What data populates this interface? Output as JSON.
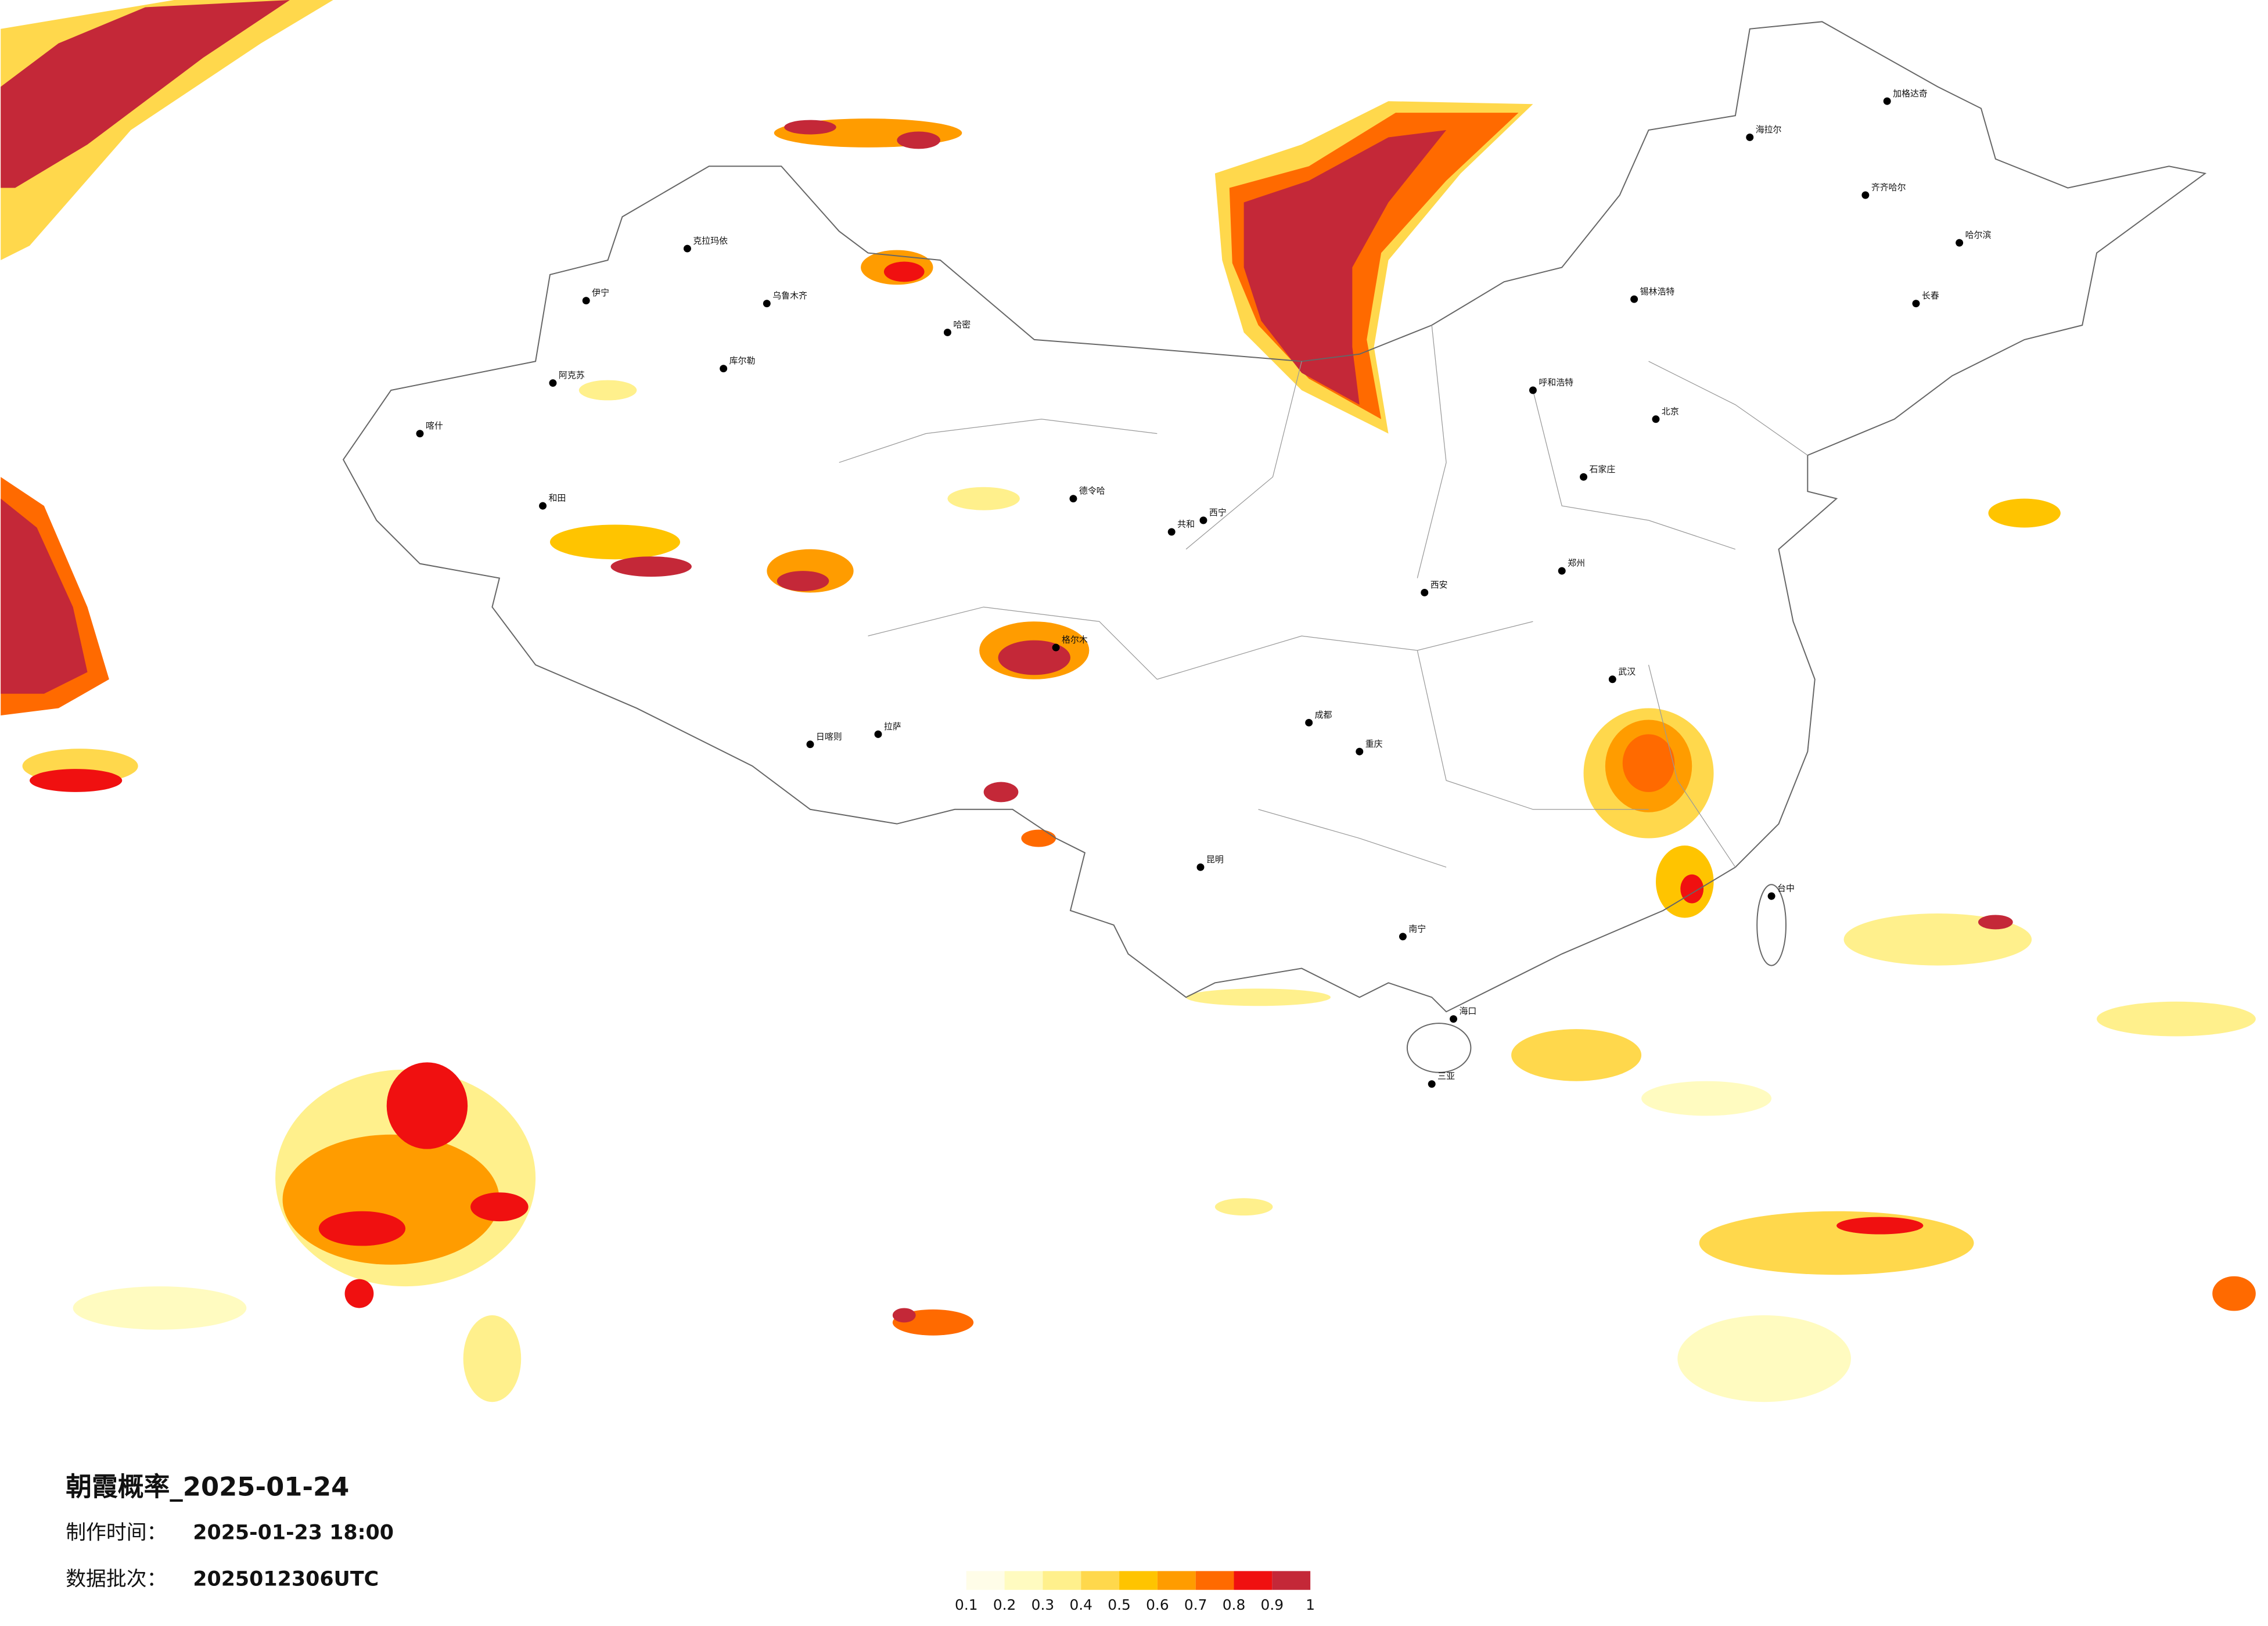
{
  "header": {
    "title": "朝霞概率_2025-01-24",
    "made_label": "制作时间：",
    "made_time": "2025-01-23 18:00",
    "batch_label": "数据批次：",
    "batch": "2025012306UTC"
  },
  "legend": {
    "ticks": [
      0.1,
      0.2,
      0.3,
      0.4,
      0.5,
      0.6,
      0.7,
      0.8,
      0.9,
      1
    ],
    "colors": [
      "#fffde8",
      "#fffbc0",
      "#fff08c",
      "#ffd84c",
      "#ffc400",
      "#ff9c00",
      "#ff6a00",
      "#f01010",
      "#c42838"
    ]
  },
  "cities": [
    "克拉玛依",
    "乌鲁木齐",
    "伊宁",
    "阿克苏",
    "喀什",
    "和田",
    "库尔勒",
    "哈密",
    "拉萨",
    "日喀则",
    "格尔木",
    "德令哈",
    "共和",
    "西宁",
    "海拉尔",
    "加格达奇",
    "齐齐哈尔",
    "哈尔滨",
    "长春",
    "锡林浩特",
    "呼和浩特",
    "北京",
    "石家庄",
    "郑州",
    "西安",
    "武汉",
    "成都",
    "重庆",
    "昆明",
    "南宁",
    "海口",
    "三亚",
    "台中"
  ]
}
